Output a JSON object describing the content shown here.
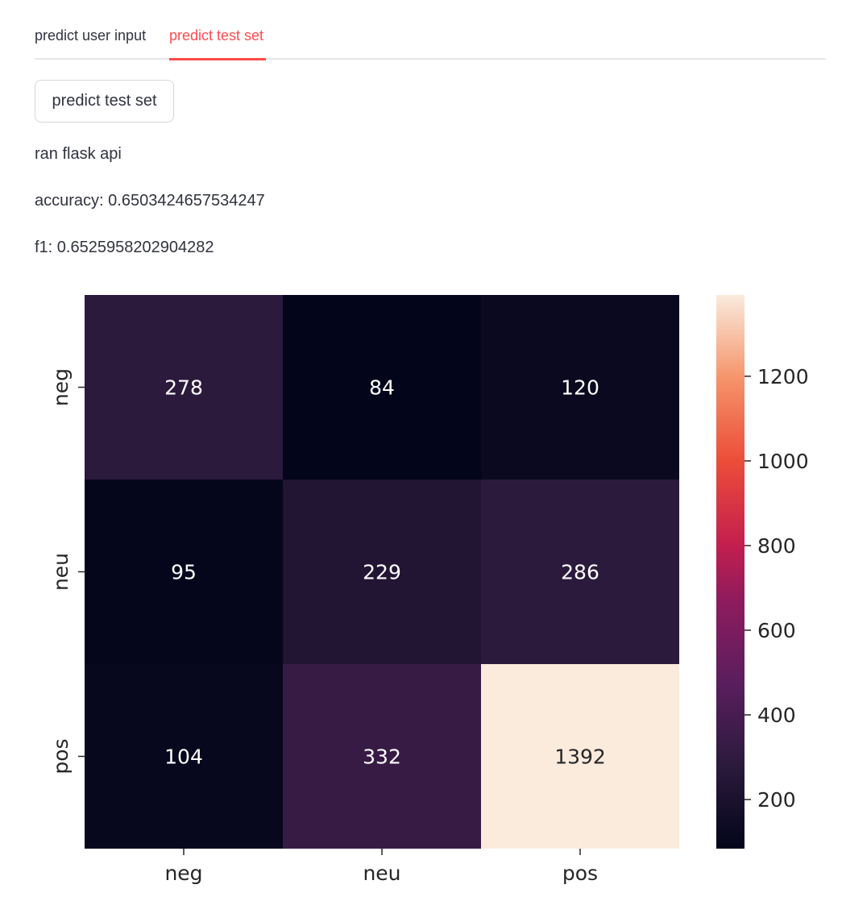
{
  "tabs": [
    {
      "label": "predict user input",
      "active": false
    },
    {
      "label": "predict test set",
      "active": true
    }
  ],
  "accent_color": "#ff4b4b",
  "predict_button": {
    "label": "predict test set"
  },
  "status": {
    "message": "ran flask api",
    "accuracy": "accuracy: 0.6503424657534247",
    "f1": "f1: 0.6525958202904282"
  },
  "chart_data": {
    "type": "heatmap",
    "x_categories": [
      "neg",
      "neu",
      "pos"
    ],
    "y_categories": [
      "neg",
      "neu",
      "pos"
    ],
    "values": [
      [
        278,
        84,
        120
      ],
      [
        95,
        229,
        286
      ],
      [
        104,
        332,
        1392
      ]
    ],
    "annotations": [
      "278",
      "84",
      "120",
      "95",
      "229",
      "286",
      "104",
      "332",
      "1392"
    ],
    "colormap": "rocket",
    "colorbar_range": [
      84,
      1392
    ],
    "colorbar_ticks": [
      200,
      400,
      600,
      800,
      1000,
      1200
    ],
    "colorbar_tick_labels": [
      "200",
      "400",
      "600",
      "800",
      "1000",
      "1200"
    ],
    "title": "",
    "xlabel": "",
    "ylabel": ""
  }
}
